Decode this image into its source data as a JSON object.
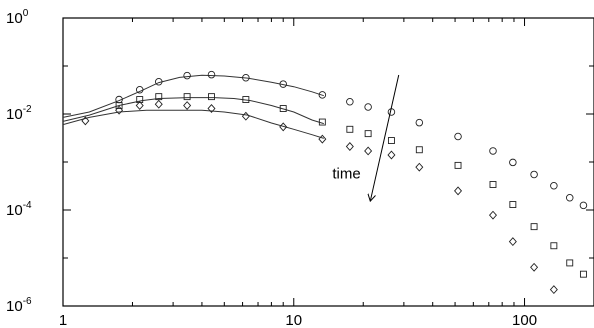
{
  "chart_data": {
    "type": "scatter",
    "x_scale": "log",
    "y_scale": "log",
    "xlim": [
      1,
      200
    ],
    "ylim": [
      1e-06,
      1
    ],
    "grid": false,
    "legend": "none",
    "x_ticks": [
      {
        "value": 1,
        "label": "1"
      },
      {
        "value": 10,
        "label": "10"
      },
      {
        "value": 100,
        "label": "100"
      }
    ],
    "y_ticks": [
      {
        "value": 1,
        "base": "10",
        "exp": "0"
      },
      {
        "value": 0.01,
        "base": "10",
        "exp": "-2"
      },
      {
        "value": 0.0001,
        "base": "10",
        "exp": "-4"
      },
      {
        "value": 1e-06,
        "base": "10",
        "exp": "-6"
      }
    ],
    "series": [
      {
        "marker": "circle",
        "points": [
          [
            1.75,
            0.02
          ],
          [
            2.15,
            0.032
          ],
          [
            2.6,
            0.047
          ],
          [
            3.45,
            0.063
          ],
          [
            4.4,
            0.066
          ],
          [
            6.2,
            0.057
          ],
          [
            9.0,
            0.042
          ],
          [
            13.3,
            0.025
          ],
          [
            17.5,
            0.018
          ],
          [
            21.0,
            0.014
          ],
          [
            26.5,
            0.011
          ],
          [
            35.0,
            0.0066
          ],
          [
            51.5,
            0.0034
          ],
          [
            73.0,
            0.0017
          ],
          [
            89.0,
            0.00098
          ],
          [
            110.0,
            0.00055
          ],
          [
            134.0,
            0.00032
          ],
          [
            157.0,
            0.00018
          ],
          [
            180.0,
            0.000125
          ]
        ],
        "fit": [
          [
            1.0,
            0.0085
          ],
          [
            1.3,
            0.011
          ],
          [
            1.75,
            0.019
          ],
          [
            2.2,
            0.031
          ],
          [
            2.6,
            0.045
          ],
          [
            3.2,
            0.058
          ],
          [
            4.0,
            0.064
          ],
          [
            5.0,
            0.062
          ],
          [
            6.3,
            0.056
          ],
          [
            8.0,
            0.046
          ],
          [
            10.0,
            0.037
          ],
          [
            12.0,
            0.029
          ],
          [
            13.5,
            0.024
          ]
        ]
      },
      {
        "marker": "square",
        "points": [
          [
            1.75,
            0.015
          ],
          [
            2.15,
            0.02
          ],
          [
            2.6,
            0.023
          ],
          [
            3.45,
            0.023
          ],
          [
            4.4,
            0.023
          ],
          [
            6.2,
            0.02
          ],
          [
            9.0,
            0.013
          ],
          [
            13.3,
            0.0068
          ],
          [
            17.5,
            0.0048
          ],
          [
            21.0,
            0.0039
          ],
          [
            26.5,
            0.0028
          ],
          [
            35.0,
            0.0018
          ],
          [
            51.5,
            0.00085
          ],
          [
            73.0,
            0.00034
          ],
          [
            89.0,
            0.00013
          ],
          [
            110.0,
            4.5e-05
          ],
          [
            134.0,
            1.8e-05
          ],
          [
            157.0,
            7.9e-06
          ],
          [
            180.0,
            4.6e-06
          ]
        ],
        "fit": [
          [
            1.0,
            0.007
          ],
          [
            1.3,
            0.0095
          ],
          [
            1.75,
            0.015
          ],
          [
            2.2,
            0.019
          ],
          [
            2.6,
            0.021
          ],
          [
            3.5,
            0.022
          ],
          [
            4.5,
            0.022
          ],
          [
            5.5,
            0.021
          ],
          [
            6.5,
            0.019
          ],
          [
            8.0,
            0.015
          ],
          [
            10.0,
            0.011
          ],
          [
            12.0,
            0.0075
          ],
          [
            13.5,
            0.0063
          ]
        ]
      },
      {
        "marker": "diamond",
        "points": [
          [
            1.25,
            0.0072
          ],
          [
            1.75,
            0.012
          ],
          [
            2.15,
            0.015
          ],
          [
            2.6,
            0.016
          ],
          [
            3.45,
            0.015
          ],
          [
            4.4,
            0.013
          ],
          [
            6.2,
            0.009
          ],
          [
            9.0,
            0.0054
          ],
          [
            13.3,
            0.003
          ],
          [
            17.5,
            0.0021
          ],
          [
            21.0,
            0.0017
          ],
          [
            26.5,
            0.0014
          ],
          [
            35.0,
            0.00078
          ],
          [
            51.5,
            0.00025
          ],
          [
            73.0,
            7.8e-05
          ],
          [
            89.0,
            2.2e-05
          ],
          [
            110.0,
            6.4e-06
          ],
          [
            134.0,
            2.2e-06
          ]
        ],
        "fit": [
          [
            1.0,
            0.006
          ],
          [
            1.3,
            0.0085
          ],
          [
            1.75,
            0.011
          ],
          [
            2.3,
            0.012
          ],
          [
            3.0,
            0.012
          ],
          [
            4.0,
            0.012
          ],
          [
            5.0,
            0.011
          ],
          [
            6.3,
            0.0095
          ],
          [
            8.0,
            0.0065
          ],
          [
            10.0,
            0.0048
          ],
          [
            12.0,
            0.0037
          ],
          [
            13.5,
            0.0031
          ]
        ]
      }
    ],
    "annotations": [
      {
        "text": "time",
        "x": 19.5,
        "y": 0.00045
      },
      {
        "type": "arrow",
        "from": [
          28.5,
          0.065
        ],
        "to": [
          21.5,
          0.00016
        ]
      }
    ]
  }
}
